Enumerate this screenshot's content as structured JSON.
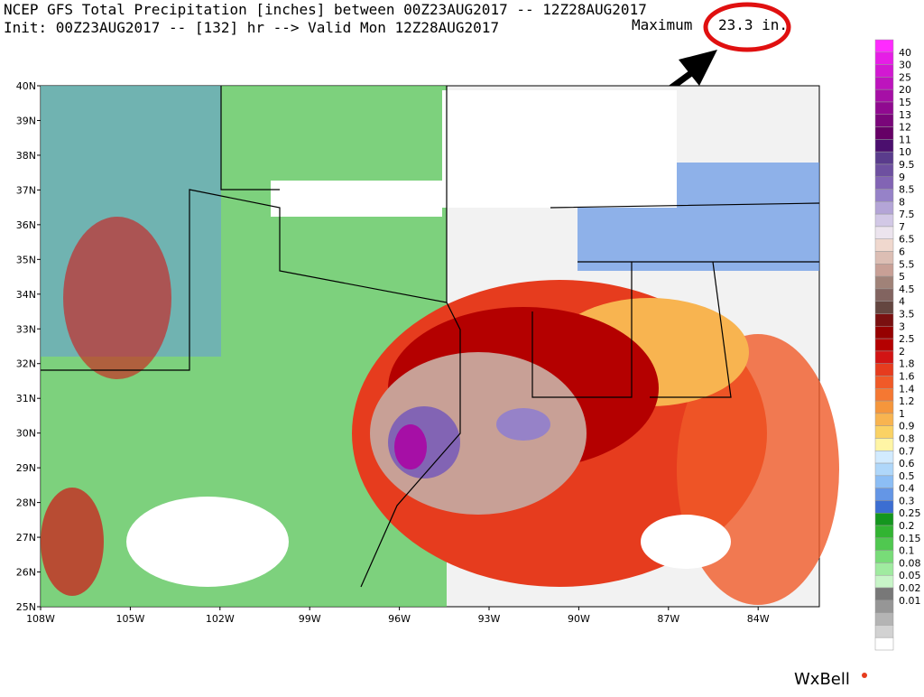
{
  "header": {
    "title_line1": "NCEP GFS Total Precipitation [inches] between 00Z23AUG2017 -- 12Z28AUG2017",
    "title_line2": "Init: 00Z23AUG2017 -- [132] hr --> Valid Mon 12Z28AUG2017",
    "maximum_label": "Maximum",
    "maximum_value": "23.3 in."
  },
  "map": {
    "lat_labels": [
      "40N",
      "39N",
      "38N",
      "37N",
      "36N",
      "35N",
      "34N",
      "33N",
      "32N",
      "31N",
      "30N",
      "29N",
      "28N",
      "27N",
      "26N",
      "25N"
    ],
    "lon_labels": [
      "108W",
      "105W",
      "102W",
      "99W",
      "96W",
      "93W",
      "90W",
      "87W",
      "84W"
    ]
  },
  "colorbar": {
    "labels": [
      "40",
      "30",
      "25",
      "20",
      "15",
      "13",
      "12",
      "11",
      "10",
      "9.5",
      "9",
      "8.5",
      "8",
      "7.5",
      "7",
      "6.5",
      "6",
      "5.5",
      "5",
      "4.5",
      "4",
      "3.5",
      "3",
      "2.5",
      "2",
      "1.8",
      "1.6",
      "1.4",
      "1.2",
      "1",
      "0.9",
      "0.8",
      "0.7",
      "0.6",
      "0.5",
      "0.4",
      "0.3",
      "0.25",
      "0.2",
      "0.15",
      "0.1",
      "0.08",
      "0.05",
      "0.02",
      "0.01"
    ],
    "colors": [
      "#ff2bff",
      "#e61ee6",
      "#d219d2",
      "#bd14bd",
      "#a60fa6",
      "#900a90",
      "#7a067a",
      "#660066",
      "#4b0f6e",
      "#5a3c8c",
      "#6e50a0",
      "#8264b4",
      "#9682c8",
      "#b4a5d7",
      "#d2c8e6",
      "#ece4ee",
      "#f0d8ce",
      "#dcbeb4",
      "#c8a096",
      "#a08278",
      "#826460",
      "#644640",
      "#7a1010",
      "#960000",
      "#b40000",
      "#d21414",
      "#e63c1e",
      "#f05a28",
      "#f57832",
      "#f5963c",
      "#f8b450",
      "#fad264",
      "#fff5a5",
      "#d2ebff",
      "#afd7fa",
      "#8cbef5",
      "#6496e6",
      "#3c6ed2",
      "#14961e",
      "#32b432",
      "#50c850",
      "#78dc78",
      "#a0eba0",
      "#c8f5c8",
      "#787878",
      "#969696",
      "#b4b4b4",
      "#d2d2d2",
      "#ffffff"
    ]
  },
  "logo": "WxBell"
}
